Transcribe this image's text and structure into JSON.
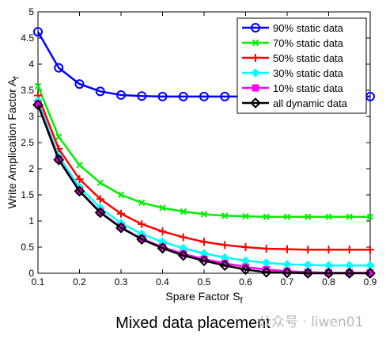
{
  "caption": "Mixed data placement",
  "watermark": "公众号 · liwen01",
  "chart_data": {
    "type": "line",
    "xlabel": "Spare Factor S",
    "xlabel_sub": "f",
    "ylabel": "Write Amplication Factor A",
    "ylabel_sub": "f",
    "xlim": [
      0.1,
      0.9
    ],
    "ylim": [
      0,
      5
    ],
    "xticks": [
      "0.1",
      "0.2",
      "0.3",
      "0.4",
      "0.5",
      "0.6",
      "0.7",
      "0.8",
      "0.9"
    ],
    "xtick_values": [
      0.1,
      0.2,
      0.3,
      0.4,
      0.5,
      0.6,
      0.7,
      0.8,
      0.9
    ],
    "yticks": [
      "0",
      "0.5",
      "1",
      "1.5",
      "2",
      "2.5",
      "3",
      "3.5",
      "4",
      "4.5",
      "5"
    ],
    "ytick_values": [
      0,
      0.5,
      1,
      1.5,
      2,
      2.5,
      3,
      3.5,
      4,
      4.5,
      5
    ],
    "grid": false,
    "legend_position": "top-right",
    "x": [
      0.1,
      0.15,
      0.2,
      0.25,
      0.3,
      0.35,
      0.4,
      0.45,
      0.5,
      0.55,
      0.6,
      0.65,
      0.7,
      0.75,
      0.8,
      0.85,
      0.9
    ],
    "series": [
      {
        "name": "90% static data",
        "color": "#0000ff",
        "marker": "circle",
        "values": [
          4.62,
          3.93,
          3.62,
          3.48,
          3.41,
          3.39,
          3.38,
          3.38,
          3.38,
          3.38,
          3.38,
          3.38,
          3.38,
          3.38,
          3.38,
          3.38,
          3.38
        ]
      },
      {
        "name": "70% static data",
        "color": "#00ee00",
        "marker": "x",
        "values": [
          3.58,
          2.61,
          2.07,
          1.73,
          1.5,
          1.35,
          1.25,
          1.18,
          1.13,
          1.1,
          1.09,
          1.08,
          1.08,
          1.08,
          1.08,
          1.08,
          1.08
        ]
      },
      {
        "name": "50% static data",
        "color": "#ff0000",
        "marker": "plus",
        "values": [
          3.4,
          2.38,
          1.8,
          1.42,
          1.14,
          0.94,
          0.8,
          0.69,
          0.6,
          0.54,
          0.5,
          0.47,
          0.46,
          0.45,
          0.45,
          0.45,
          0.45
        ]
      },
      {
        "name": "30% static data",
        "color": "#00ffff",
        "marker": "diamond-filled",
        "values": [
          3.3,
          2.24,
          1.65,
          1.25,
          0.96,
          0.75,
          0.6,
          0.48,
          0.38,
          0.3,
          0.24,
          0.2,
          0.17,
          0.16,
          0.15,
          0.15,
          0.15
        ]
      },
      {
        "name": "10% static data",
        "color": "#ff00ff",
        "marker": "square",
        "values": [
          3.24,
          2.18,
          1.58,
          1.17,
          0.88,
          0.66,
          0.5,
          0.37,
          0.27,
          0.19,
          0.12,
          0.07,
          0.04,
          0.02,
          0.01,
          0.01,
          0.01
        ]
      },
      {
        "name": "all dynamic data",
        "color": "#000000",
        "marker": "diamond",
        "values": [
          3.22,
          2.17,
          1.57,
          1.16,
          0.87,
          0.65,
          0.48,
          0.34,
          0.24,
          0.15,
          0.07,
          0.02,
          0.01,
          0.0,
          0.0,
          0.0,
          0.0
        ]
      }
    ]
  }
}
